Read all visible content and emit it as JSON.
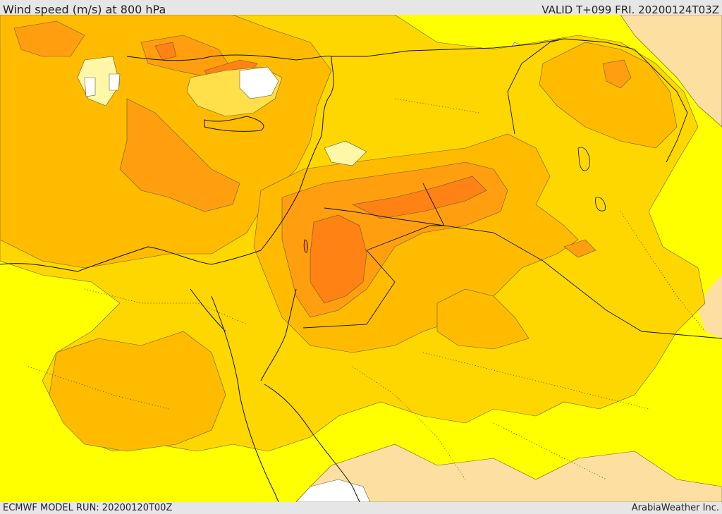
{
  "header": {
    "title": "Wind speed (m/s) at 800 hPa",
    "valid": "VALID T+099 FRI. 20200124T03Z"
  },
  "footer": {
    "model_run": "ECMWF MODEL RUN: 20200120T00Z",
    "credit": "ArabiaWeather Inc."
  },
  "map": {
    "colors": {
      "calm": "#ffffff",
      "very_low": "#fff7a8",
      "low": "#ffe04a",
      "base": "#ffff00",
      "moderate": "#ffd700",
      "medium": "#ffbb00",
      "high": "#ff9f10",
      "higher": "#ff8214",
      "land_light": "#fedfa2",
      "contour": "#6a5a2a",
      "border": "#111111"
    }
  }
}
